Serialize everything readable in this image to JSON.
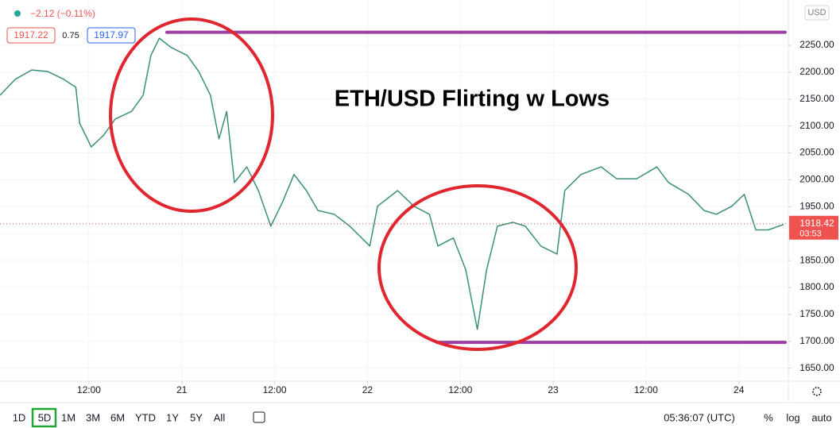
{
  "header": {
    "change": "−2.12 (−0.11%)",
    "bid": "1917.22",
    "spread": "0.75",
    "ask": "1917.97"
  },
  "chart_data": {
    "type": "line",
    "title": "ETH/USD Flirting w Lows",
    "currency": "USD",
    "x": [
      0.5,
      2.5,
      4.6,
      6.7,
      8.7,
      10.3,
      10.8,
      12.3,
      13.9,
      15.4,
      17.5,
      19.0,
      20.0,
      21.1,
      22.6,
      24.7,
      26.2,
      27.7,
      28.8,
      29.8,
      30.8,
      32.4,
      33.9,
      35.5,
      37.0,
      38.5,
      40.1,
      41.6,
      43.7,
      45.7,
      48.3,
      49.3,
      51.9,
      54.0,
      56.0,
      57.1,
      59.1,
      60.7,
      62.2,
      63.4,
      64.8,
      66.8,
      68.4,
      70.4,
      72.5,
      73.5,
      75.6,
      78.2,
      80.2,
      82.8,
      85.4,
      86.9,
      89.5,
      91.5,
      93.1,
      95.1,
      96.7,
      98.2,
      99.8,
      101.8
    ],
    "series": [
      {
        "color": "#3b8f76",
        "values": [
          2157,
          2187,
          2204,
          2201,
          2187,
          2172,
          2105,
          2061,
          2083,
          2113,
          2127,
          2157,
          2231,
          2263,
          2246,
          2231,
          2201,
          2157,
          2076,
          2127,
          1995,
          2024,
          1980,
          1914,
          1958,
          2010,
          1980,
          1943,
          1936,
          1914,
          1877,
          1951,
          1980,
          1951,
          1936,
          1877,
          1892,
          1833,
          1722,
          1833,
          1914,
          1921,
          1914,
          1877,
          1862,
          1980,
          2010,
          2024,
          2002,
          2002,
          2024,
          1995,
          1973,
          1943,
          1936,
          1951,
          1973,
          1907,
          1907,
          1917
        ]
      }
    ],
    "xlim": [
      0.5,
      102.4
    ],
    "ylim": [
      1626,
      2334
    ],
    "xticks": [
      {
        "value": 12,
        "label": "12:00"
      },
      {
        "value": 24,
        "label": "21"
      },
      {
        "value": 36,
        "label": "12:00"
      },
      {
        "value": 48,
        "label": "22"
      },
      {
        "value": 60,
        "label": "12:00"
      },
      {
        "value": 72,
        "label": "23"
      },
      {
        "value": 84,
        "label": "12:00"
      },
      {
        "value": 96,
        "label": "24"
      }
    ],
    "yticks": [
      {
        "value": 1650,
        "label": "1650.00"
      },
      {
        "value": 1700,
        "label": "1700.00"
      },
      {
        "value": 1750,
        "label": "1750.00"
      },
      {
        "value": 1800,
        "label": "1800.00"
      },
      {
        "value": 1850,
        "label": "1850.00"
      },
      {
        "value": 1900,
        "label": "1900.00"
      },
      {
        "value": 1950,
        "label": "1950.00"
      },
      {
        "value": 2000,
        "label": "2000.00"
      },
      {
        "value": 2050,
        "label": "2050.00"
      },
      {
        "value": 2100,
        "label": "2100.00"
      },
      {
        "value": 2150,
        "label": "2150.00"
      },
      {
        "value": 2200,
        "label": "2200.00"
      },
      {
        "value": 2250,
        "label": "2250.00"
      }
    ],
    "grid": true,
    "last_price": 1918.42,
    "countdown": "03:53",
    "hlines": [
      {
        "value": 2274,
        "color": "#9c3fa0"
      },
      {
        "value": 1698,
        "color": "#9c3fa0"
      }
    ]
  },
  "toolbar": {
    "ranges": [
      "1D",
      "5D",
      "1M",
      "3M",
      "6M",
      "YTD",
      "1Y",
      "5Y",
      "All"
    ],
    "clock": "05:36:07 (UTC)",
    "percent": "%",
    "log": "log",
    "auto": "auto"
  }
}
